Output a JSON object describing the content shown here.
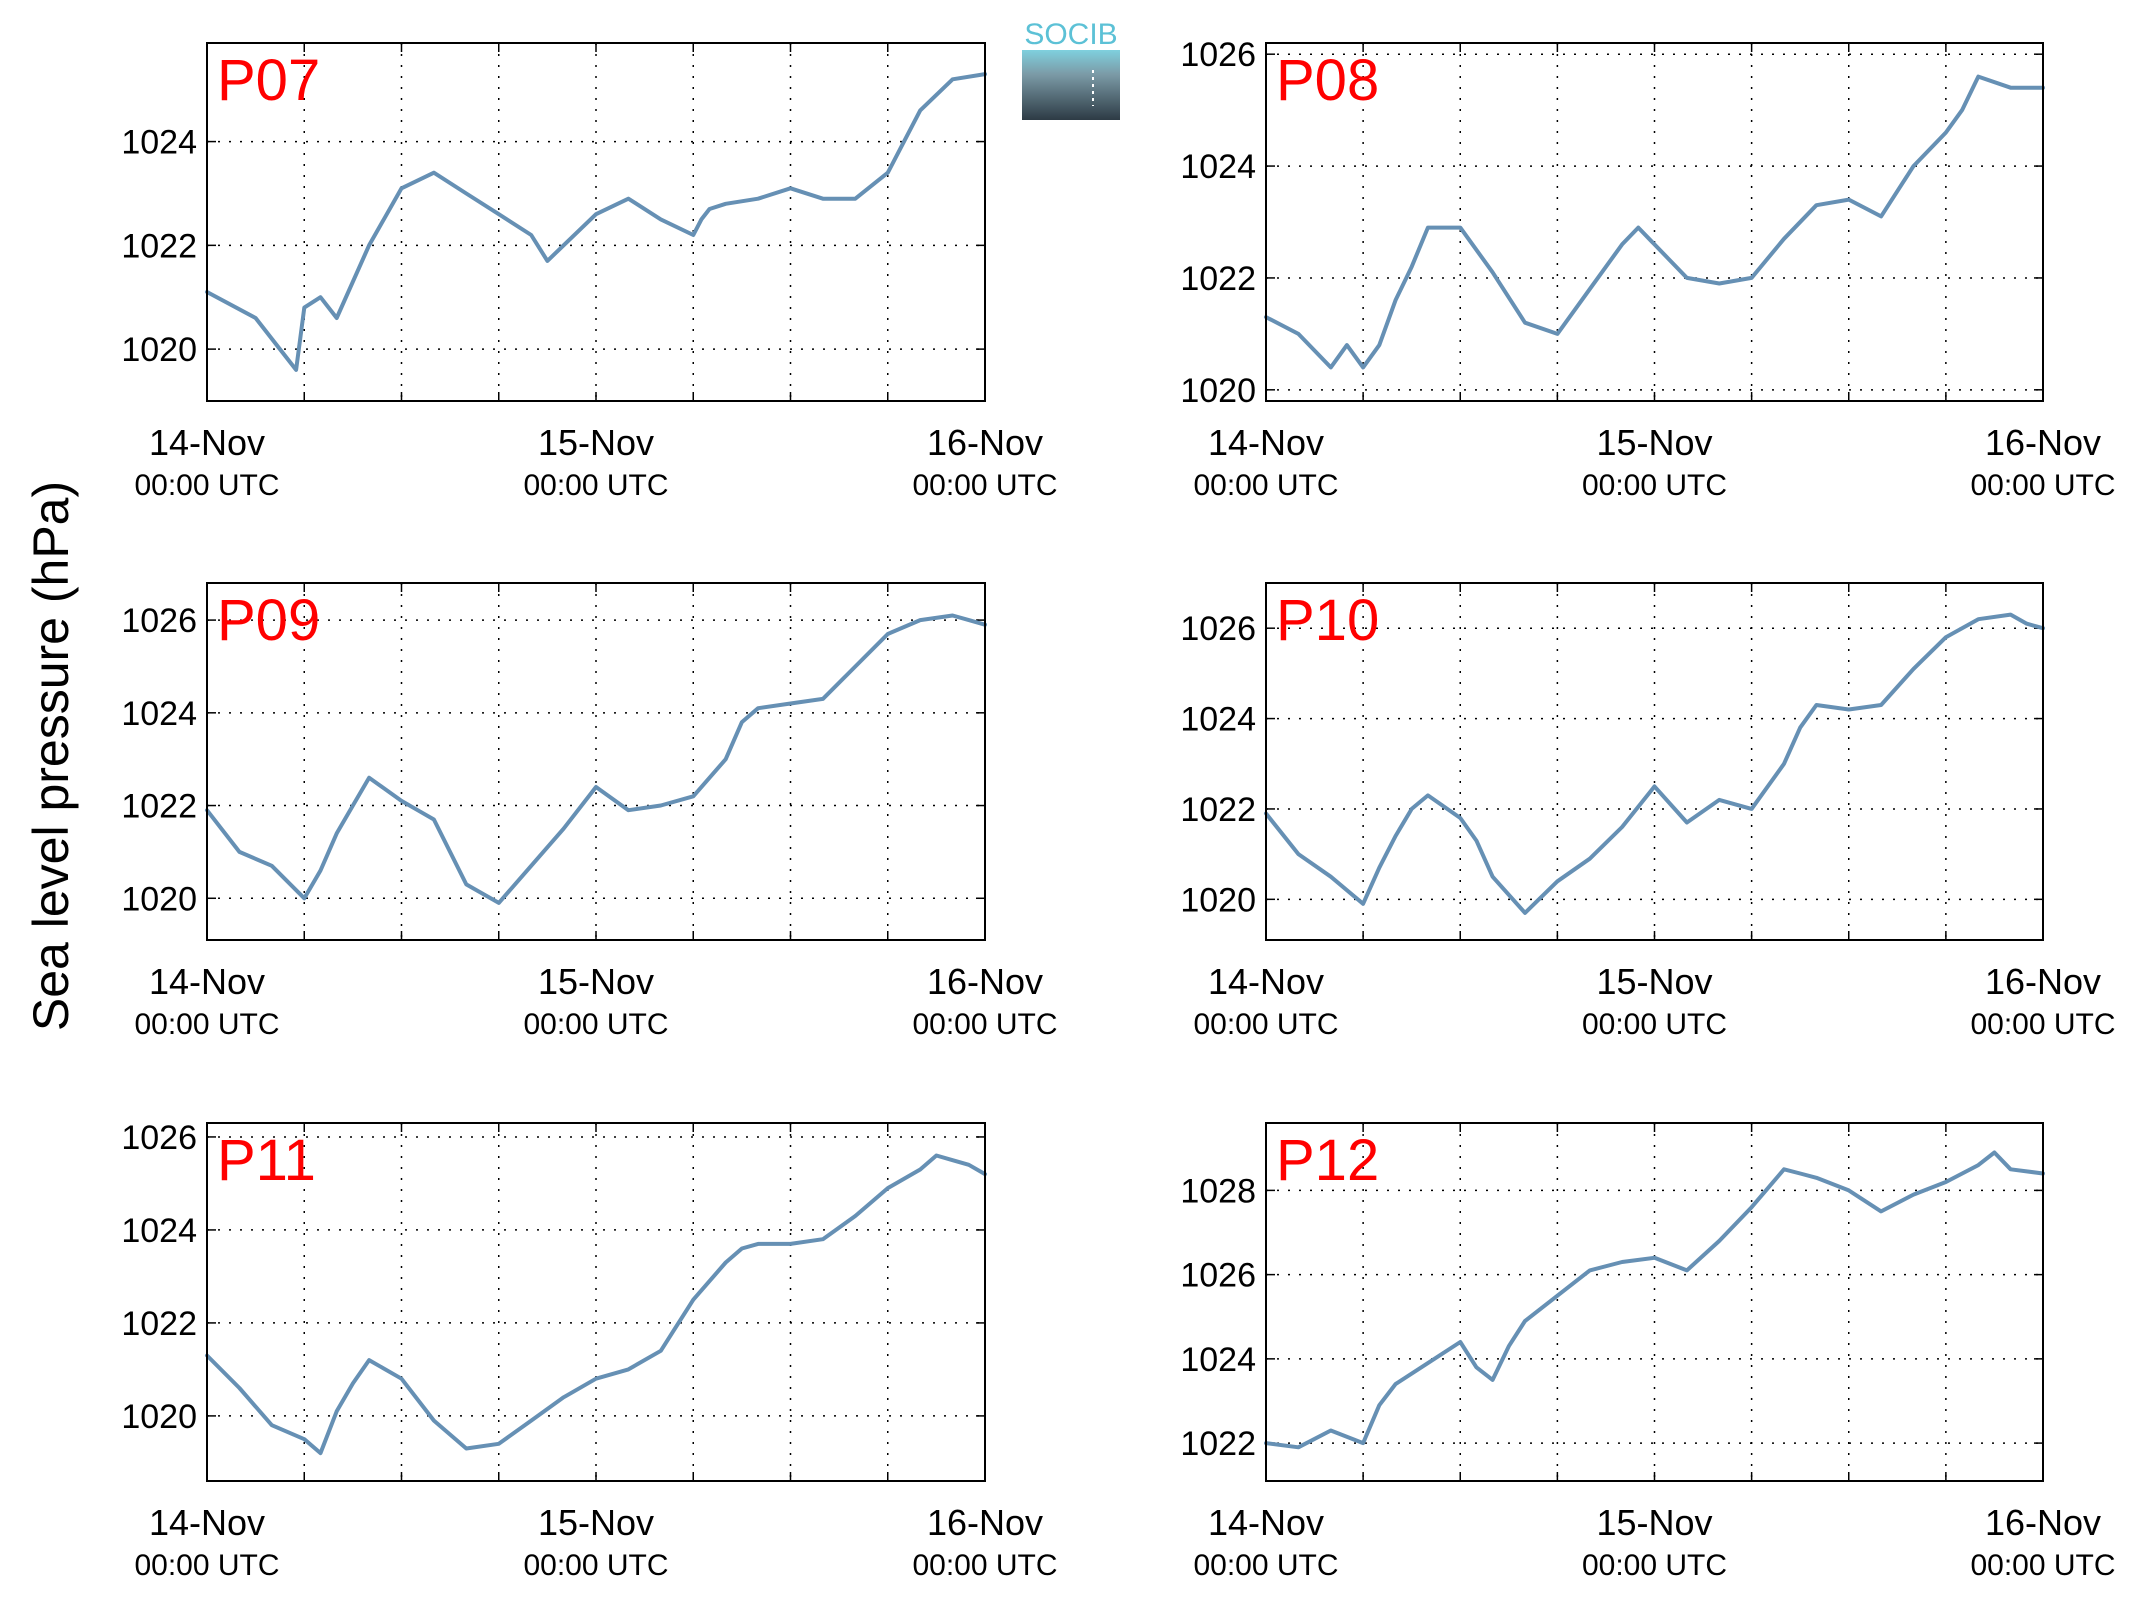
{
  "figure": {
    "ylabel": "Sea level pressure (hPa)",
    "logo_text": "SOCIB",
    "line_color": "#6690b4",
    "panel_label_color": "#ff0000"
  },
  "chart_data": [
    {
      "type": "line",
      "panel_label": "P07",
      "ylabel": "Sea level pressure (hPa)",
      "x_range": [
        "2014-11-14 00:00 UTC",
        "2014-11-16 00:00 UTC"
      ],
      "x_ticks": [
        {
          "date": "14-Nov",
          "time": "00:00 UTC"
        },
        {
          "date": "15-Nov",
          "time": "00:00 UTC"
        },
        {
          "date": "16-Nov",
          "time": "00:00 UTC"
        }
      ],
      "ylim": [
        1019.0,
        1025.9
      ],
      "y_ticks": [
        1020,
        1022,
        1024
      ],
      "grid": true,
      "series": [
        {
          "x_hours": [
            0,
            3,
            5.5,
            6,
            7,
            8,
            10,
            12,
            14,
            16,
            18,
            20,
            21,
            24,
            26,
            28,
            30,
            30.5,
            31,
            32,
            34,
            36,
            38,
            40,
            42,
            43,
            44,
            46,
            48
          ],
          "values": [
            1021.1,
            1020.6,
            1019.6,
            1020.8,
            1021.0,
            1020.6,
            1022.0,
            1023.1,
            1023.4,
            1023.0,
            1022.6,
            1022.2,
            1021.7,
            1022.6,
            1022.9,
            1022.5,
            1022.2,
            1022.5,
            1022.7,
            1022.8,
            1022.9,
            1023.1,
            1022.9,
            1022.9,
            1023.4,
            1024.0,
            1024.6,
            1025.2,
            1025.3
          ]
        }
      ]
    },
    {
      "type": "line",
      "panel_label": "P08",
      "ylabel": "Sea level pressure (hPa)",
      "x_range": [
        "2014-11-14 00:00 UTC",
        "2014-11-16 00:00 UTC"
      ],
      "x_ticks": [
        {
          "date": "14-Nov",
          "time": "00:00 UTC"
        },
        {
          "date": "15-Nov",
          "time": "00:00 UTC"
        },
        {
          "date": "16-Nov",
          "time": "00:00 UTC"
        }
      ],
      "ylim": [
        1019.8,
        1026.2
      ],
      "y_ticks": [
        1020,
        1022,
        1024,
        1026
      ],
      "grid": true,
      "series": [
        {
          "x_hours": [
            0,
            2,
            4,
            5,
            6,
            7,
            8,
            9,
            10,
            12,
            14,
            16,
            18,
            20,
            22,
            23,
            24,
            26,
            28,
            30,
            32,
            34,
            36,
            38,
            40,
            42,
            43,
            44,
            46,
            48
          ],
          "values": [
            1021.3,
            1021.0,
            1020.4,
            1020.8,
            1020.4,
            1020.8,
            1021.6,
            1022.2,
            1022.9,
            1022.9,
            1022.1,
            1021.2,
            1021.0,
            1021.8,
            1022.6,
            1022.9,
            1022.6,
            1022.0,
            1021.9,
            1022.0,
            1022.7,
            1023.3,
            1023.4,
            1023.1,
            1024.0,
            1024.6,
            1025.0,
            1025.6,
            1025.4,
            1025.4
          ]
        }
      ]
    },
    {
      "type": "line",
      "panel_label": "P09",
      "ylabel": "Sea level pressure (hPa)",
      "x_range": [
        "2014-11-14 00:00 UTC",
        "2014-11-16 00:00 UTC"
      ],
      "x_ticks": [
        {
          "date": "14-Nov",
          "time": "00:00 UTC"
        },
        {
          "date": "15-Nov",
          "time": "00:00 UTC"
        },
        {
          "date": "16-Nov",
          "time": "00:00 UTC"
        }
      ],
      "ylim": [
        1019.1,
        1026.8
      ],
      "y_ticks": [
        1020,
        1022,
        1024,
        1026
      ],
      "grid": true,
      "series": [
        {
          "x_hours": [
            0,
            2,
            4,
            6,
            7,
            8,
            9,
            10,
            12,
            13,
            14,
            16,
            18,
            20,
            22,
            24,
            26,
            28,
            30,
            32,
            33,
            34,
            36,
            38,
            40,
            42,
            44,
            46,
            47,
            48
          ],
          "values": [
            1021.9,
            1021.0,
            1020.7,
            1020.0,
            1020.6,
            1021.4,
            1022.0,
            1022.6,
            1022.1,
            1021.9,
            1021.7,
            1020.3,
            1019.9,
            1020.7,
            1021.5,
            1022.4,
            1021.9,
            1022.0,
            1022.2,
            1023.0,
            1023.8,
            1024.1,
            1024.2,
            1024.3,
            1025.0,
            1025.7,
            1026.0,
            1026.1,
            1026.0,
            1025.9
          ]
        }
      ]
    },
    {
      "type": "line",
      "panel_label": "P10",
      "ylabel": "Sea level pressure (hPa)",
      "x_range": [
        "2014-11-14 00:00 UTC",
        "2014-11-16 00:00 UTC"
      ],
      "x_ticks": [
        {
          "date": "14-Nov",
          "time": "00:00 UTC"
        },
        {
          "date": "15-Nov",
          "time": "00:00 UTC"
        },
        {
          "date": "16-Nov",
          "time": "00:00 UTC"
        }
      ],
      "ylim": [
        1019.1,
        1027.0
      ],
      "y_ticks": [
        1020,
        1022,
        1024,
        1026
      ],
      "grid": true,
      "series": [
        {
          "x_hours": [
            0,
            2,
            4,
            6,
            7,
            8,
            9,
            10,
            12,
            13,
            14,
            16,
            18,
            20,
            22,
            24,
            26,
            28,
            30,
            32,
            33,
            34,
            36,
            38,
            40,
            42,
            44,
            46,
            47,
            48
          ],
          "values": [
            1021.9,
            1021.0,
            1020.5,
            1019.9,
            1020.7,
            1021.4,
            1022.0,
            1022.3,
            1021.8,
            1021.3,
            1020.5,
            1019.7,
            1020.4,
            1020.9,
            1021.6,
            1022.5,
            1021.7,
            1022.2,
            1022.0,
            1023.0,
            1023.8,
            1024.3,
            1024.2,
            1024.3,
            1025.1,
            1025.8,
            1026.2,
            1026.3,
            1026.1,
            1026.0
          ]
        }
      ]
    },
    {
      "type": "line",
      "panel_label": "P11",
      "ylabel": "Sea level pressure (hPa)",
      "x_range": [
        "2014-11-14 00:00 UTC",
        "2014-11-16 00:00 UTC"
      ],
      "x_ticks": [
        {
          "date": "14-Nov",
          "time": "00:00 UTC"
        },
        {
          "date": "15-Nov",
          "time": "00:00 UTC"
        },
        {
          "date": "16-Nov",
          "time": "00:00 UTC"
        }
      ],
      "ylim": [
        1018.6,
        1026.3
      ],
      "y_ticks": [
        1020,
        1022,
        1024,
        1026
      ],
      "grid": true,
      "series": [
        {
          "x_hours": [
            0,
            2,
            4,
            6,
            7,
            8,
            9,
            10,
            12,
            14,
            16,
            18,
            20,
            22,
            24,
            26,
            28,
            30,
            32,
            33,
            34,
            36,
            38,
            40,
            42,
            44,
            45,
            46,
            47,
            48
          ],
          "values": [
            1021.3,
            1020.6,
            1019.8,
            1019.5,
            1019.2,
            1020.1,
            1020.7,
            1021.2,
            1020.8,
            1019.9,
            1019.3,
            1019.4,
            1019.9,
            1020.4,
            1020.8,
            1021.0,
            1021.4,
            1022.5,
            1023.3,
            1023.6,
            1023.7,
            1023.7,
            1023.8,
            1024.3,
            1024.9,
            1025.3,
            1025.6,
            1025.5,
            1025.4,
            1025.2
          ]
        }
      ]
    },
    {
      "type": "line",
      "panel_label": "P12",
      "ylabel": "Sea level pressure (hPa)",
      "x_range": [
        "2014-11-14 00:00 UTC",
        "2014-11-16 00:00 UTC"
      ],
      "x_ticks": [
        {
          "date": "14-Nov",
          "time": "00:00 UTC"
        },
        {
          "date": "15-Nov",
          "time": "00:00 UTC"
        },
        {
          "date": "16-Nov",
          "time": "00:00 UTC"
        }
      ],
      "ylim": [
        1021.1,
        1029.6
      ],
      "y_ticks": [
        1022,
        1024,
        1026,
        1028
      ],
      "grid": true,
      "series": [
        {
          "x_hours": [
            0,
            2,
            4,
            6,
            7,
            8,
            10,
            12,
            13,
            14,
            15,
            16,
            18,
            20,
            22,
            24,
            26,
            28,
            30,
            32,
            33,
            34,
            36,
            38,
            40,
            42,
            44,
            45,
            46,
            48
          ],
          "values": [
            1022.0,
            1021.9,
            1022.3,
            1022.0,
            1022.9,
            1023.4,
            1023.9,
            1024.4,
            1023.8,
            1023.5,
            1024.3,
            1024.9,
            1025.5,
            1026.1,
            1026.3,
            1026.4,
            1026.1,
            1026.8,
            1027.6,
            1028.5,
            1028.4,
            1028.3,
            1028.0,
            1027.5,
            1027.9,
            1028.2,
            1028.6,
            1028.9,
            1028.5,
            1028.4
          ]
        }
      ]
    }
  ]
}
